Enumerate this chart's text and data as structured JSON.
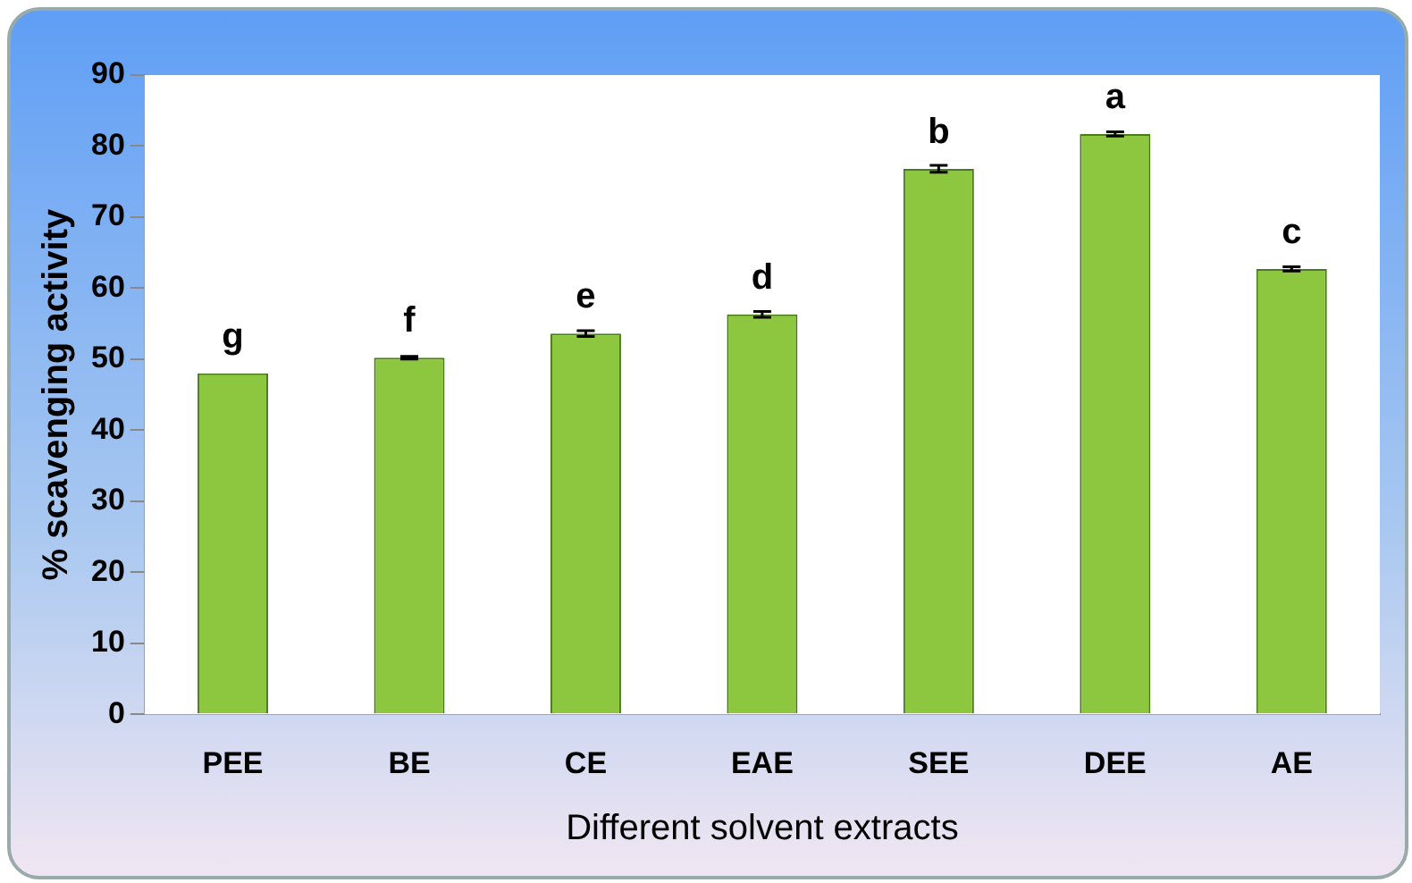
{
  "chart_data": {
    "type": "bar",
    "xlabel": "Different solvent extracts",
    "ylabel": "% scavenging activity",
    "categories": [
      "PEE",
      "BE",
      "CE",
      "EAE",
      "SEE",
      "DEE",
      "AE"
    ],
    "values": [
      48.0,
      50.2,
      53.6,
      56.3,
      76.8,
      81.7,
      62.7
    ],
    "errors": [
      null,
      0.2,
      0.4,
      0.4,
      0.5,
      0.3,
      0.3
    ],
    "color": "#8dc63f",
    "ylim": [
      0,
      90
    ],
    "yticks": [
      0,
      10,
      20,
      30,
      40,
      50,
      60,
      70,
      80,
      90
    ],
    "grid": false,
    "legend": false,
    "annotations": [
      {
        "text": "g",
        "x": "PEE",
        "y": 48.0
      },
      {
        "text": "f",
        "x": "BE",
        "y": 50.2
      },
      {
        "text": "e",
        "x": "CE",
        "y": 53.6
      },
      {
        "text": "d",
        "x": "EAE",
        "y": 56.3
      },
      {
        "text": "b",
        "x": "SEE",
        "y": 76.8
      },
      {
        "text": "a",
        "x": "DEE",
        "y": 81.7
      },
      {
        "text": "c",
        "x": "AE",
        "y": 62.7
      }
    ]
  }
}
